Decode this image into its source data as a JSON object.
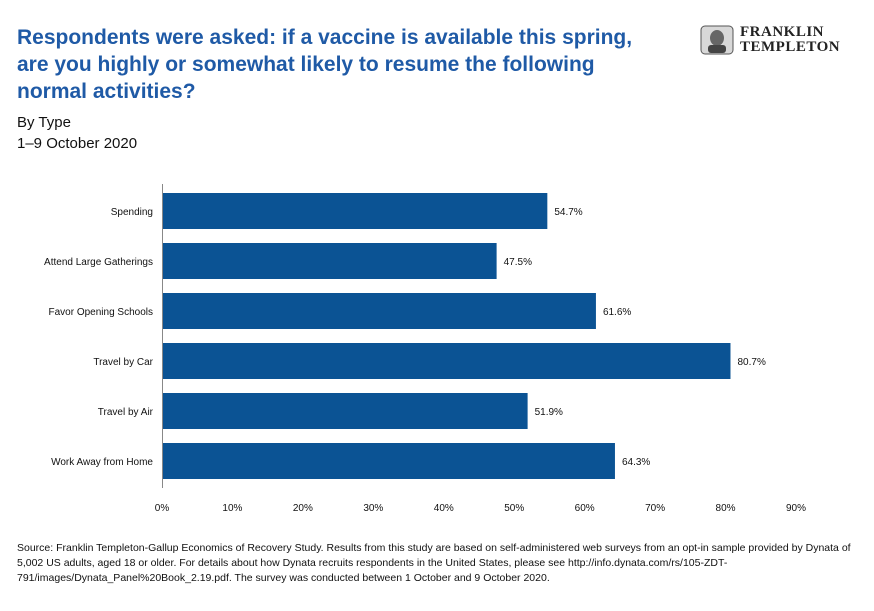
{
  "title": "Respondents were asked: if a vaccine is available this spring, are you highly or somewhat likely to resume the following normal activities?",
  "subtitle_line1": "By Type",
  "subtitle_line2": "1–9 October 2020",
  "logo": {
    "line1": "FRANKLIN",
    "line2": "TEMPLETON",
    "icon": "portrait-medallion-icon"
  },
  "colors": {
    "bar": "#0b5394",
    "title": "#1f5aa6"
  },
  "chart_data": {
    "type": "bar",
    "orientation": "horizontal",
    "categories": [
      "Spending",
      "Attend Large Gatherings",
      "Favor Opening Schools",
      "Travel by Car",
      "Travel by Air",
      "Work Away from Home"
    ],
    "values": [
      54.7,
      47.5,
      61.6,
      80.7,
      51.9,
      64.3
    ],
    "value_labels": [
      "54.7%",
      "47.5%",
      "61.6%",
      "80.7%",
      "51.9%",
      "64.3%"
    ],
    "xlim": [
      0,
      90
    ],
    "xticks": [
      "0%",
      "10%",
      "20%",
      "30%",
      "40%",
      "50%",
      "60%",
      "70%",
      "80%",
      "90%"
    ],
    "grid": false,
    "legend": "none"
  },
  "source": "Source: Franklin Templeton-Gallup Economics of Recovery Study. Results from this study are based on self-administered web surveys from an opt-in sample provided by Dynata of 5,002 US adults, aged 18 or older. For details about how Dynata recruits respondents in the United States, please see http://info.dynata.com/rs/105-ZDT-791/images/Dynata_Panel%20Book_2.19.pdf. The survey was conducted between 1 October and 9 October 2020."
}
